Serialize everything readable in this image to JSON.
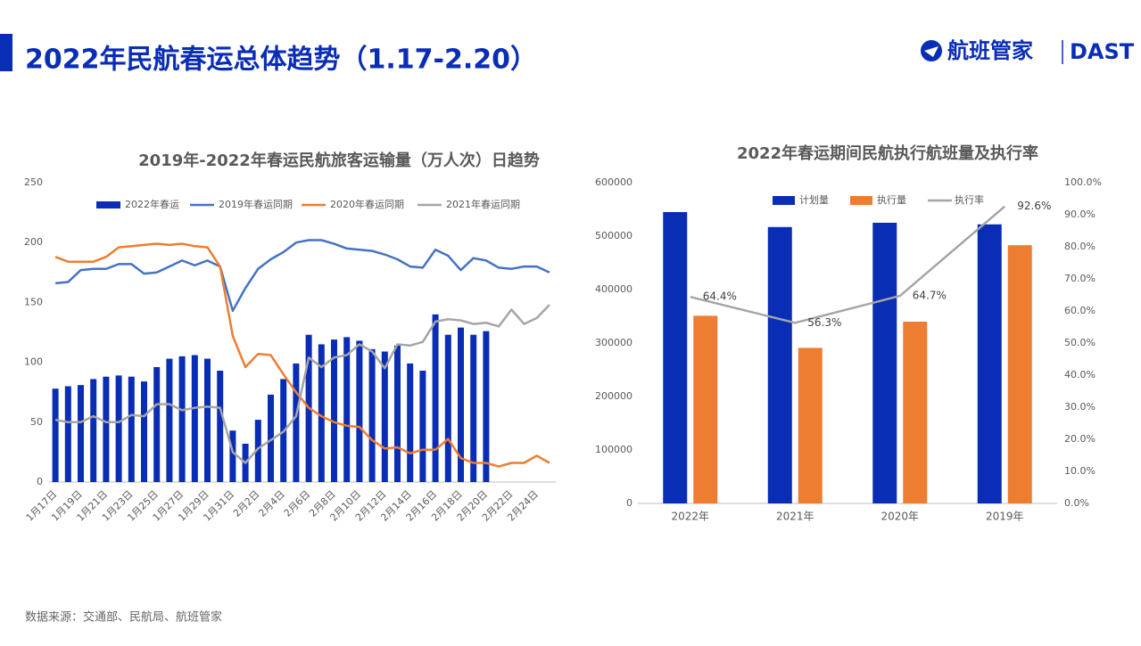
{
  "header": {
    "title": "2022年民航春运总体趋势（1.17-2.20）",
    "logo": "航班管家",
    "logo_en": "DAST"
  },
  "source": "数据来源：交通部、民航局、航班管家",
  "chart_data": [
    {
      "type": "bar",
      "title": "2019年-2022年春运民航旅客运输量（万人次）日趋势",
      "categories": [
        "1月17日",
        null,
        "1月19日",
        null,
        "1月21日",
        null,
        "1月23日",
        null,
        "1月25日",
        null,
        "1月27日",
        null,
        "1月29日",
        null,
        "1月31日",
        null,
        "2月2日",
        null,
        "2月4日",
        null,
        "2月6日",
        null,
        "2月8日",
        null,
        "2月10日",
        null,
        "2月12日",
        null,
        "2月14日",
        null,
        "2月16日",
        null,
        "2月18日",
        null,
        "2月20日",
        null,
        "2月22日",
        null,
        "2月24日",
        null
      ],
      "ylim": [
        0,
        250
      ],
      "yticks": [
        0,
        50,
        100,
        150,
        200,
        250
      ],
      "grid": false,
      "series": [
        {
          "name": "2022年春运",
          "type": "bar",
          "color": "#0a2db5",
          "values": [
            78,
            80,
            81,
            86,
            88,
            89,
            88,
            84,
            96,
            103,
            105,
            106,
            103,
            93,
            43,
            32,
            52,
            73,
            86,
            99,
            123,
            115,
            119,
            121,
            118,
            111,
            109,
            114,
            99,
            93,
            140,
            123,
            129,
            123,
            126,
            null,
            null,
            null,
            null,
            null
          ]
        },
        {
          "name": "2019年春运同期",
          "type": "line",
          "color": "#4472c4",
          "values": [
            166,
            167,
            177,
            178,
            178,
            182,
            182,
            174,
            175,
            180,
            185,
            181,
            185,
            180,
            143,
            162,
            178,
            186,
            192,
            200,
            202,
            202,
            199,
            195,
            194,
            193,
            190,
            186,
            180,
            179,
            194,
            189,
            177,
            187,
            185,
            179,
            178,
            180,
            180,
            175
          ]
        },
        {
          "name": "2020年春运同期",
          "type": "line",
          "color": "#ed7d31",
          "values": [
            188,
            184,
            184,
            184,
            188,
            196,
            197,
            198,
            199,
            198,
            199,
            197,
            196,
            180,
            122,
            96,
            107,
            106,
            90,
            75,
            62,
            55,
            50,
            47,
            46,
            35,
            28,
            29,
            24,
            27,
            27,
            36,
            20,
            16,
            16,
            13,
            16,
            16,
            22,
            16
          ]
        },
        {
          "name": "2021年春运同期",
          "type": "line",
          "color": "#a5a5a5",
          "values": [
            52,
            50,
            50,
            55,
            50,
            50,
            56,
            55,
            65,
            65,
            60,
            62,
            63,
            62,
            25,
            16,
            28,
            35,
            42,
            55,
            104,
            96,
            104,
            106,
            115,
            109,
            95,
            115,
            114,
            117,
            134,
            136,
            135,
            132,
            133,
            130,
            144,
            132,
            137,
            148
          ]
        }
      ]
    },
    {
      "type": "bar",
      "title": "2022年春运期间民航执行航班量及执行率",
      "categories": [
        "2022年",
        "2021年",
        "2020年",
        "2019年"
      ],
      "ylim": [
        0,
        600000
      ],
      "yticks": [
        0,
        100000,
        200000,
        300000,
        400000,
        500000,
        600000
      ],
      "y2lim": [
        0,
        100
      ],
      "y2ticks": [
        {
          "value": 0,
          "label": "0.0%"
        },
        {
          "value": 10,
          "label": "10.0%"
        },
        {
          "value": 20,
          "label": "20.0%"
        },
        {
          "value": 30,
          "label": "30.0%"
        },
        {
          "value": 40,
          "label": "40.0%"
        },
        {
          "value": 50,
          "label": "50.0%"
        },
        {
          "value": 60,
          "label": "60.0%"
        },
        {
          "value": 70,
          "label": "70.0%"
        },
        {
          "value": 80,
          "label": "80.0%"
        },
        {
          "value": 90,
          "label": "90.0%"
        },
        {
          "value": 100,
          "label": "100.0%"
        }
      ],
      "grid": false,
      "series": [
        {
          "name": "计划量",
          "type": "bar",
          "color": "#0a2db5",
          "values": [
            545000,
            517000,
            525000,
            522000
          ]
        },
        {
          "name": "执行量",
          "type": "bar",
          "color": "#ed7d31",
          "values": [
            351000,
            291000,
            340000,
            483000
          ]
        },
        {
          "name": "执行率",
          "type": "line",
          "axis": "y2",
          "color": "#a5a5a5",
          "values": [
            64.4,
            56.3,
            64.7,
            92.6
          ],
          "value_labels": [
            "64.4%",
            "56.3%",
            "64.7%",
            "92.6%"
          ]
        }
      ]
    }
  ]
}
